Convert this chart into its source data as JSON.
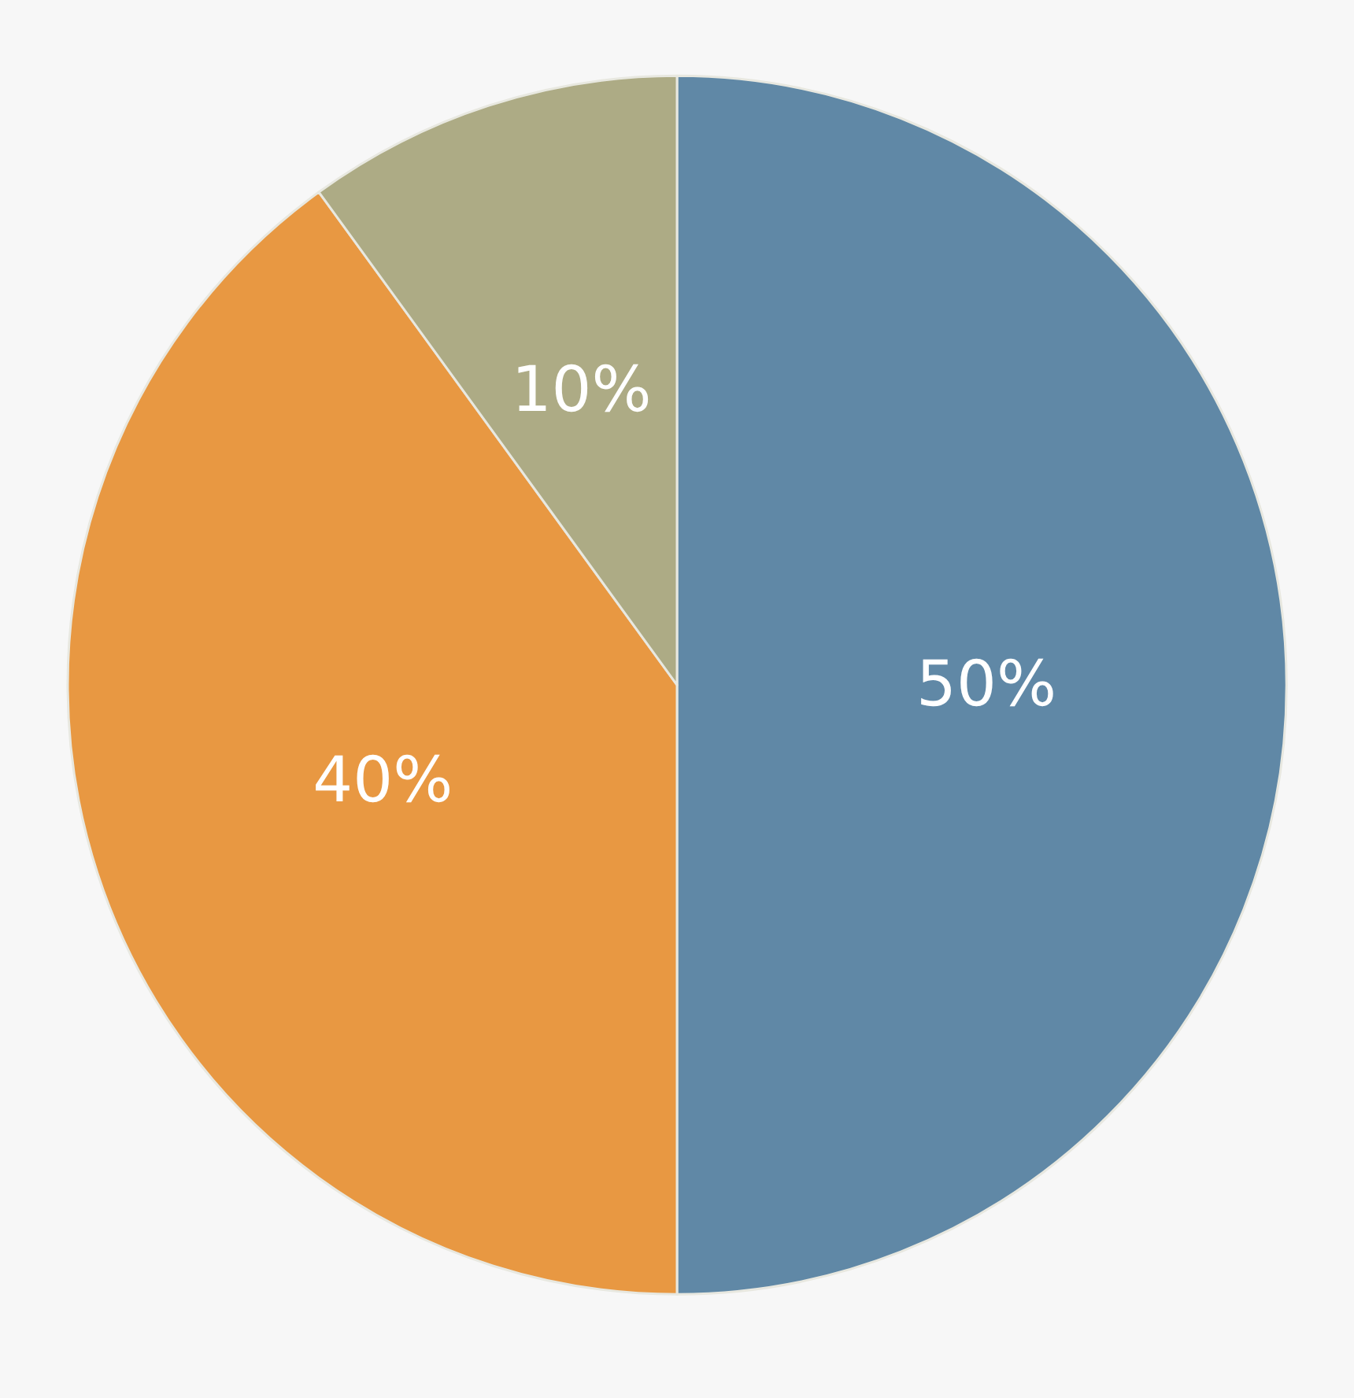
{
  "chart_data": {
    "type": "pie",
    "categories": [
      null,
      null,
      null
    ],
    "values": [
      50,
      40,
      10
    ],
    "colors": [
      "#6088a6",
      "#e89842",
      "#adab85"
    ],
    "value_labels": [
      "50%",
      "40%",
      "10%"
    ]
  }
}
